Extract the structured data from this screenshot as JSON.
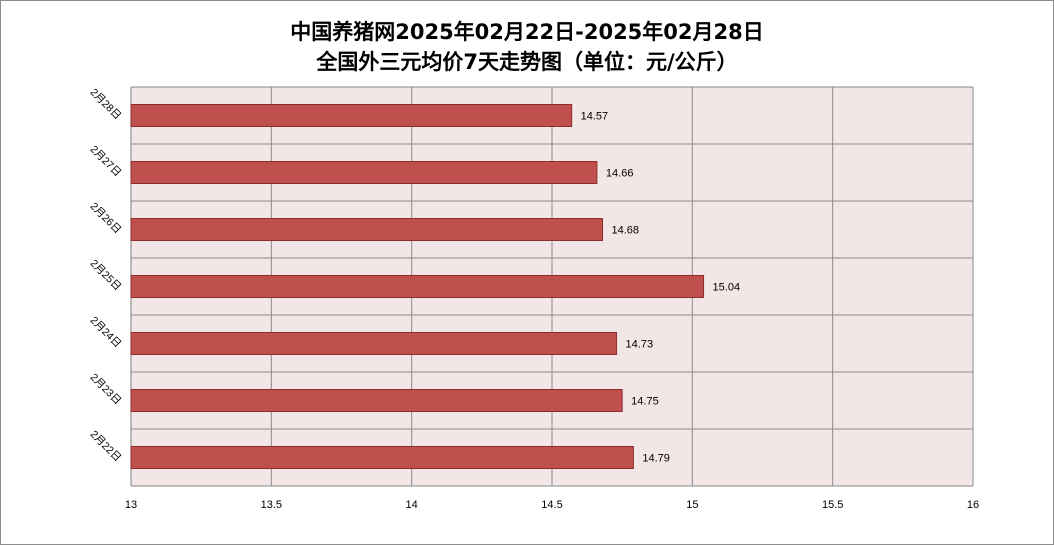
{
  "chart_data": {
    "type": "bar",
    "orientation": "horizontal",
    "title": "中国养猪网2025年02月22日-2025年02月28日",
    "subtitle": "全国外三元均价7天走势图（单位：元/公斤）",
    "categories": [
      "2月28日",
      "2月27日",
      "2月26日",
      "2月25日",
      "2月24日",
      "2月23日",
      "2月22日"
    ],
    "values": [
      14.57,
      14.66,
      14.68,
      15.04,
      14.73,
      14.75,
      14.79
    ],
    "value_labels": [
      "14.57",
      "14.66",
      "14.68",
      "15.04",
      "14.73",
      "14.75",
      "14.79"
    ],
    "xlim": [
      13,
      16
    ],
    "xticks": [
      "13",
      "13.5",
      "14",
      "14.5",
      "15",
      "15.5",
      "16"
    ],
    "tick_values": [
      13,
      13.5,
      14,
      14.5,
      15,
      15.5,
      16
    ],
    "grid": true,
    "legend": "none",
    "colors": {
      "bar_fill": "#c0504d",
      "bar_stroke": "#8b2e2c",
      "plot_bg": "#f2e6e6",
      "grid": "#8a8a8a"
    }
  }
}
